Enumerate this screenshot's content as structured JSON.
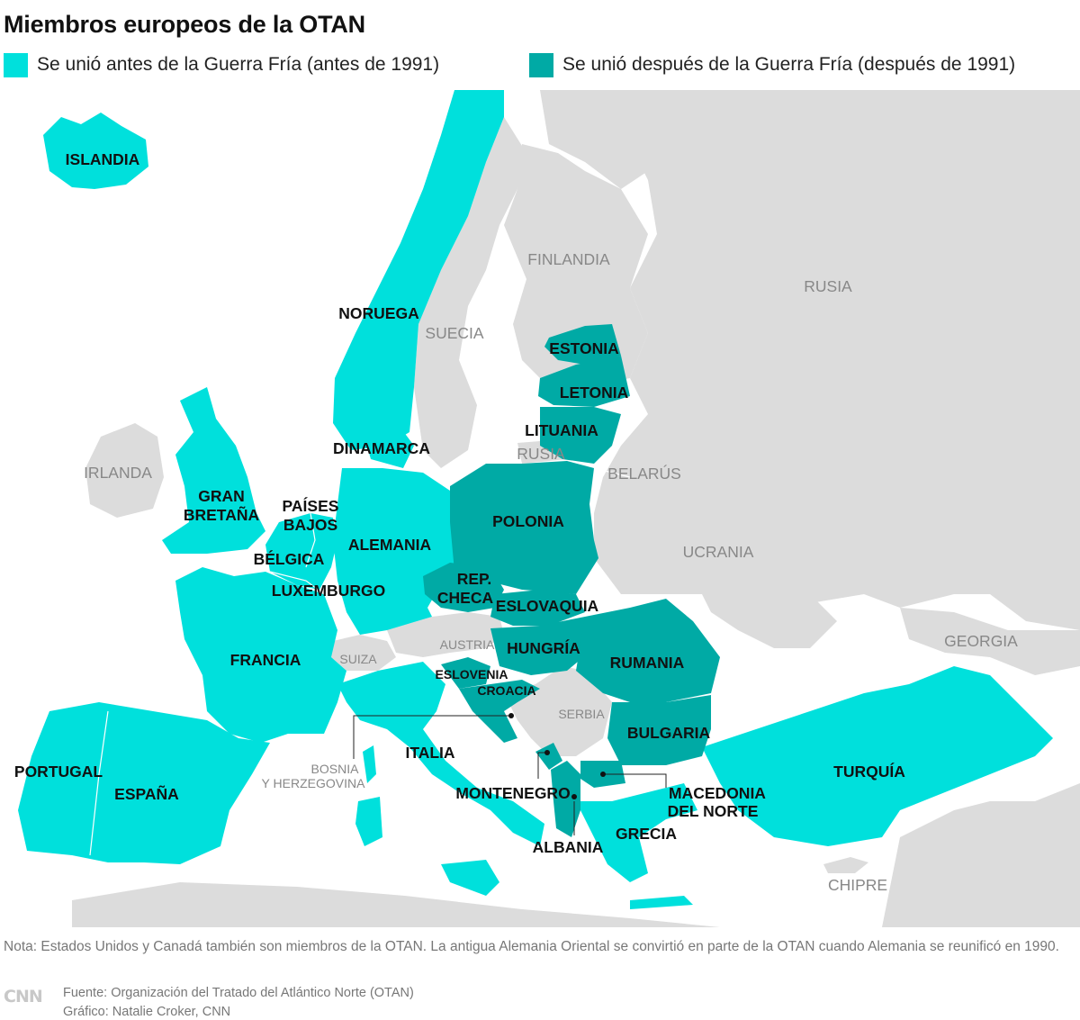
{
  "title": "Miembros europeos de la OTAN",
  "legend": {
    "pre_1991": {
      "label": "Se unió antes de la Guerra Fría (antes de 1991)",
      "color": "#00e0dc"
    },
    "post_1991": {
      "label": "Se unió después de la Guerra Fría (después de 1991)",
      "color": "#00aaa5"
    }
  },
  "map_colors": {
    "non_member": "#dcdcdc",
    "water": "#ffffff",
    "pre_1991": "#00e0dc",
    "post_1991": "#00aaa5"
  },
  "members_pre_1991": {
    "islandia": "ISLANDIA",
    "noruega": "NORUEGA",
    "dinamarca": "DINAMARCA",
    "gran_bretana_1": "GRAN",
    "gran_bretana_2": "BRETAÑA",
    "paises_bajos_1": "PAÍSES",
    "paises_bajos_2": "BAJOS",
    "alemania": "ALEMANIA",
    "belgica": "BÉLGICA",
    "luxemburgo": "LUXEMBURGO",
    "francia": "FRANCIA",
    "portugal": "PORTUGAL",
    "espana": "ESPAÑA",
    "italia": "ITALIA",
    "grecia": "GRECIA",
    "turquia": "TURQUÍA"
  },
  "members_post_1991": {
    "estonia": "ESTONIA",
    "letonia": "LETONIA",
    "lituania": "LITUANIA",
    "polonia": "POLONIA",
    "rep_checa_1": "REP.",
    "rep_checa_2": "CHECA",
    "eslovaquia": "ESLOVAQUIA",
    "hungria": "HUNGRÍA",
    "rumania": "RUMANIA",
    "eslovenia": "ESLOVENIA",
    "croacia": "CROACIA",
    "bulgaria": "BULGARIA",
    "montenegro": "MONTENEGRO",
    "albania": "ALBANIA",
    "macedonia_1": "MACEDONIA",
    "macedonia_2": "DEL NORTE"
  },
  "non_members": {
    "finlandia": "FINLANDIA",
    "suecia": "SUECIA",
    "rusia": "RUSIA",
    "rusia_kaliningrado": "RUSIA",
    "belarus": "BELARÚS",
    "ucrania": "UCRANIA",
    "irlanda": "IRLANDA",
    "suiza": "SUIZA",
    "austria": "AUSTRIA",
    "serbia": "SERBIA",
    "bosnia_1": "BOSNIA",
    "bosnia_2": "Y HERZEGOVINA",
    "georgia": "GEORGIA",
    "chipre": "CHIPRE"
  },
  "note": "Nota: Estados Unidos y Canadá también son miembros de la OTAN. La antigua Alemania Oriental se convirtió en parte de la OTAN cuando Alemania se reunificó en 1990.",
  "logo": "CNN",
  "source": "Fuente: Organización del Tratado del Atlántico Norte (OTAN)",
  "graphic": "Gráfico: Natalie Croker, CNN"
}
